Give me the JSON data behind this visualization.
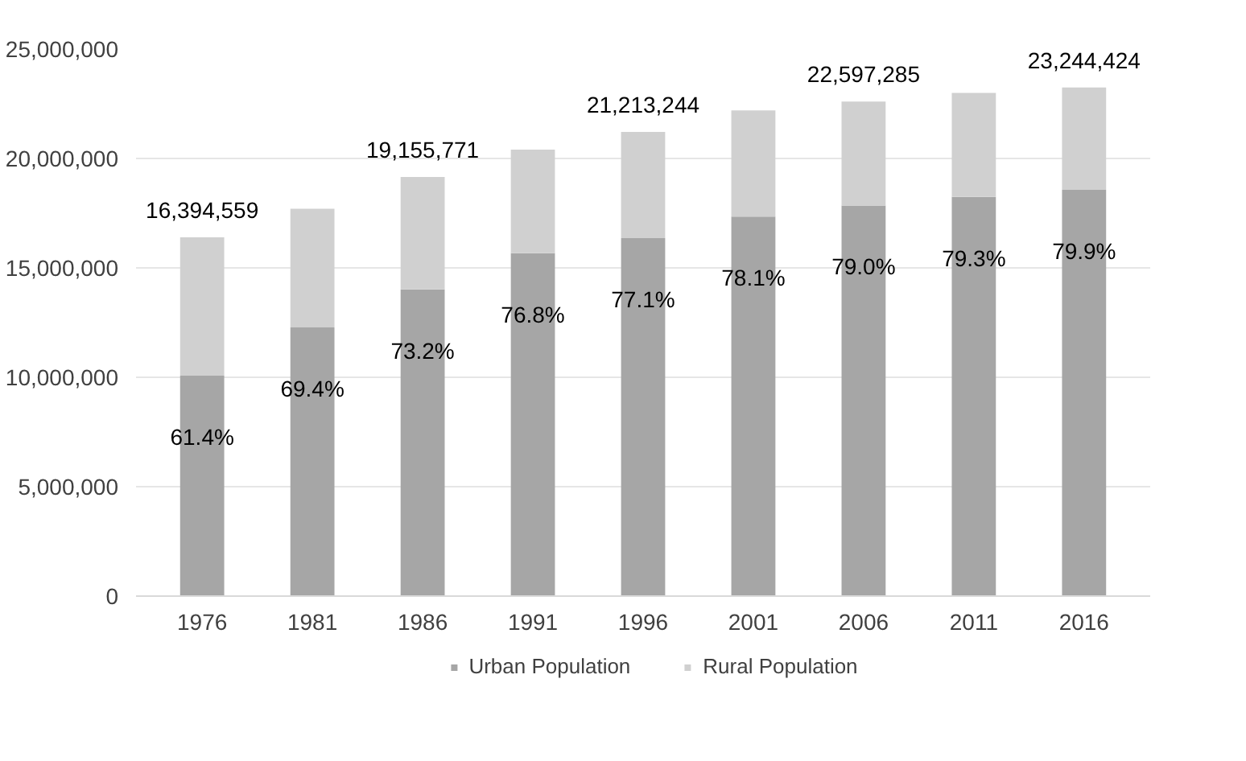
{
  "chart_data": {
    "type": "bar",
    "stacked": true,
    "categories": [
      "1976",
      "1981",
      "1986",
      "1991",
      "1996",
      "2001",
      "2006",
      "2011",
      "2016"
    ],
    "series": [
      {
        "name": "Urban Population",
        "color": "#a6a6a6",
        "values": [
          10070000,
          12280000,
          14020000,
          15670000,
          16360000,
          17340000,
          17850000,
          18240000,
          18570000
        ]
      },
      {
        "name": "Rural Population",
        "color": "#d0d0d0",
        "values": [
          6324559,
          5420000,
          5135771,
          4730000,
          4853244,
          4860000,
          4747285,
          4760000,
          4674424
        ]
      }
    ],
    "totals": [
      "16,394,559",
      null,
      "19,155,771",
      null,
      "21,213,244",
      null,
      "22,597,285",
      null,
      "23,244,424"
    ],
    "annotations": [
      {
        "text": "61.4%",
        "x": "1976",
        "y": 10070000
      },
      {
        "text": "69.4%",
        "x": "1981",
        "y": 12280000
      },
      {
        "text": "73.2%",
        "x": "1986",
        "y": 14020000
      },
      {
        "text": "76.8%",
        "x": "1991",
        "y": 15670000
      },
      {
        "text": "77.1%",
        "x": "1996",
        "y": 16360000
      },
      {
        "text": "78.1%",
        "x": "2001",
        "y": 17340000
      },
      {
        "text": "79.0%",
        "x": "2006",
        "y": 17850000
      },
      {
        "text": "79.3%",
        "x": "2011",
        "y": 18240000
      },
      {
        "text": "79.9%",
        "x": "2016",
        "y": 18570000
      }
    ],
    "ylim": [
      0,
      25000000
    ],
    "yticks": [
      {
        "value": 0,
        "label": "0"
      },
      {
        "value": 5000000,
        "label": "5,000,000"
      },
      {
        "value": 10000000,
        "label": "10,000,000"
      },
      {
        "value": 15000000,
        "label": "15,000,000"
      },
      {
        "value": 20000000,
        "label": "20,000,000"
      },
      {
        "value": 25000000,
        "label": "25,000,000"
      }
    ],
    "grid": "y",
    "legend": "bottom"
  }
}
